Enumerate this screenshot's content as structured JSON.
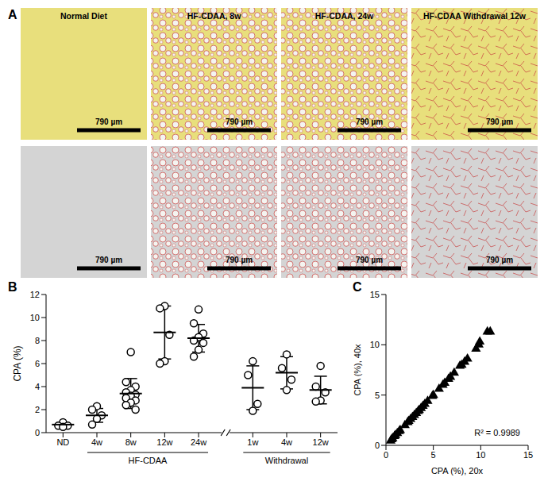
{
  "panel_labels": [
    "A",
    "B",
    "C"
  ],
  "images": [
    {
      "title": "Normal Diet",
      "scale_bars": [
        "790 µm",
        "790 µm"
      ]
    },
    {
      "title": "HF-CDAA, 8w",
      "scale_bars": [
        "790 µm",
        "790 µm"
      ]
    },
    {
      "title": "HF-CDAA, 24w",
      "scale_bars": [
        "790 µm",
        "790 µm"
      ]
    },
    {
      "title": "HF-CDAA Withdrawal 12w",
      "scale_bars": [
        "790 µm",
        "790 µm"
      ]
    }
  ],
  "chart_data": [
    {
      "type": "scatter",
      "panel": "B",
      "y_label": "CPA (%)",
      "categories": [
        "ND",
        "4w",
        "8w",
        "12w",
        "24w",
        "1w",
        "4w",
        "12w"
      ],
      "groups": [
        {
          "label": "HF-CDAA",
          "first": 1,
          "last": 4
        },
        {
          "label": "Withdrawal",
          "first": 5,
          "last": 7
        }
      ],
      "points": [
        [
          0.9,
          0.6,
          0.6,
          0.5
        ],
        [
          2.3,
          2.0,
          1.5,
          1.2,
          0.7
        ],
        [
          7.0,
          4.4,
          4.0,
          3.7,
          3.5,
          3.3,
          3.2,
          3.0,
          2.8,
          2.6,
          2.4,
          2.0
        ],
        [
          11.0,
          10.8,
          8.5,
          6.2,
          6.0
        ],
        [
          10.7,
          9.5,
          8.6,
          8.3,
          8.0,
          7.8,
          7.2,
          6.6
        ],
        [
          6.2,
          5.0,
          2.5,
          1.9
        ],
        [
          6.8,
          5.6,
          4.6,
          3.7
        ],
        [
          5.8,
          4.0,
          3.5,
          2.8,
          2.7
        ]
      ],
      "mean": [
        0.7,
        1.5,
        3.4,
        8.7,
        8.2,
        3.9,
        5.2,
        3.7
      ],
      "sd": [
        0.2,
        0.6,
        1.3,
        2.3,
        1.2,
        1.9,
        1.4,
        1.2
      ],
      "ylim": [
        0,
        12
      ],
      "yticks": [
        0,
        2,
        4,
        6,
        8,
        10,
        12
      ],
      "marker": "circle",
      "color": "#000000"
    },
    {
      "type": "scatter",
      "panel": "C",
      "x_label": "CPA (%), 20x",
      "y_label": "CPA (%), 40x",
      "x": [
        0.5,
        0.6,
        0.7,
        0.9,
        1.0,
        1.2,
        1.4,
        1.5,
        2.0,
        2.3,
        2.4,
        2.6,
        2.8,
        3.0,
        3.2,
        3.4,
        3.5,
        3.7,
        3.9,
        4.1,
        4.4,
        4.9,
        5.0,
        5.6,
        6.0,
        6.2,
        6.6,
        6.8,
        7.2,
        7.8,
        8.0,
        8.3,
        8.6,
        9.5,
        9.8,
        9.9,
        10.7,
        11.0
      ],
      "values": [
        0.45,
        0.6,
        0.7,
        0.9,
        1.0,
        1.2,
        1.4,
        1.5,
        2.0,
        2.3,
        2.4,
        2.6,
        2.8,
        3.0,
        3.2,
        3.4,
        3.5,
        3.7,
        3.9,
        4.1,
        4.4,
        4.9,
        5.0,
        5.6,
        6.0,
        6.2,
        6.6,
        6.8,
        7.2,
        7.9,
        8.0,
        8.3,
        8.6,
        9.6,
        10.0,
        10.3,
        11.3,
        11.3
      ],
      "xlim": [
        0,
        15
      ],
      "xticks": [
        0,
        5,
        10,
        15
      ],
      "ylim": [
        0,
        15
      ],
      "yticks": [
        0,
        5,
        10,
        15
      ],
      "marker": "triangle",
      "color": "#000000",
      "annotation": "R² = 0.9989"
    }
  ]
}
